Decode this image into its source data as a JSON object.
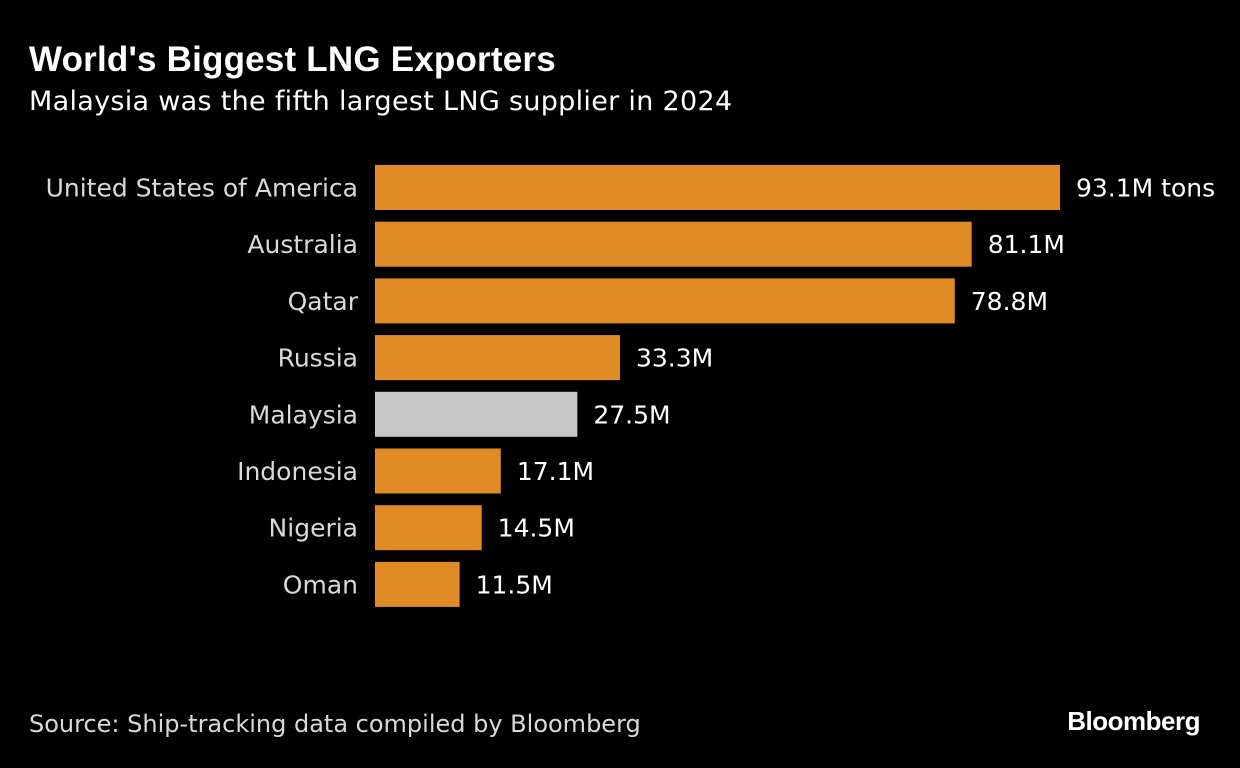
{
  "header": {
    "title": "World's Biggest LNG Exporters",
    "subtitle": "Malaysia was the fifth largest LNG supplier in 2024"
  },
  "footer": {
    "source": "Source: Ship-tracking data compiled by Bloomberg",
    "brand": "Bloomberg"
  },
  "colors": {
    "background": "#000000",
    "bar_default": "#e08b25",
    "bar_highlight": "#c8c8c8",
    "text": "#ffffff"
  },
  "chart_data": {
    "type": "bar",
    "orientation": "horizontal",
    "title": "World's Biggest LNG Exporters",
    "subtitle": "Malaysia was the fifth largest LNG supplier in 2024",
    "xlabel": "",
    "ylabel": "",
    "unit": "million tons",
    "xlim": [
      0,
      100
    ],
    "grid": false,
    "legend": "none",
    "categories": [
      "United States of America",
      "Australia",
      "Qatar",
      "Russia",
      "Malaysia",
      "Indonesia",
      "Nigeria",
      "Oman"
    ],
    "values": [
      93.1,
      81.1,
      78.8,
      33.3,
      27.5,
      17.1,
      14.5,
      11.5
    ],
    "value_labels": [
      "93.1M tons",
      "81.1M",
      "78.8M",
      "33.3M",
      "27.5M",
      "17.1M",
      "14.5M",
      "11.5M"
    ],
    "highlight": "Malaysia"
  }
}
